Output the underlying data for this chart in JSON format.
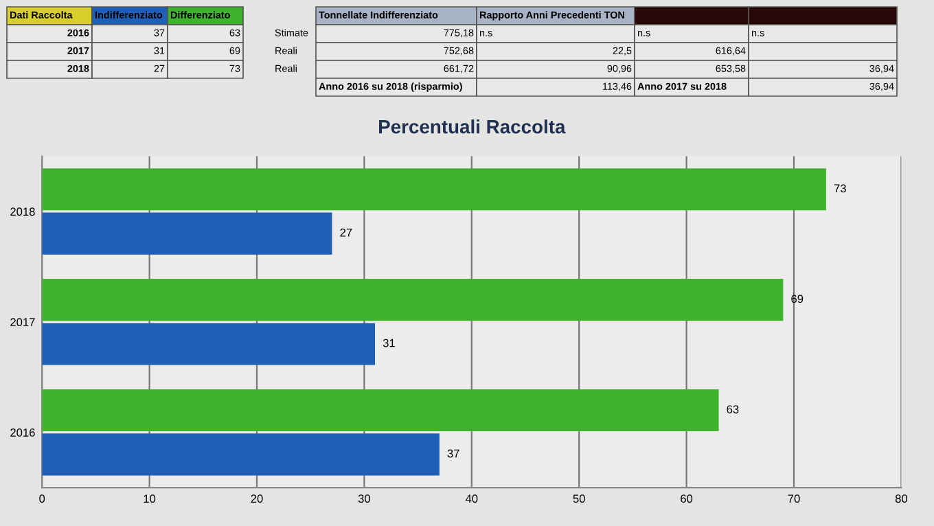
{
  "chart_data": {
    "type": "bar",
    "orientation": "horizontal",
    "title": "Percentuali Raccolta",
    "categories": [
      "2018",
      "2017",
      "2016"
    ],
    "series": [
      {
        "name": "Indifferenziato",
        "color": "#1f5fb8",
        "values": [
          27,
          31,
          37
        ]
      },
      {
        "name": "Differenziato",
        "color": "#3fb22e",
        "values": [
          73,
          69,
          63
        ]
      }
    ],
    "xlim": [
      0,
      80
    ],
    "xticks": [
      0,
      10,
      20,
      30,
      40,
      50,
      60,
      70,
      80
    ],
    "grid": "x",
    "legend": false,
    "data_labels": true,
    "annotations": [
      "Dati Raccolta",
      "37",
      "63",
      "31",
      "69",
      "27",
      "73",
      "Tonnellate Indifferenziato",
      "Rapporto Anni Precedenti TON",
      "Stimate",
      "775,18",
      "n.s",
      "n.s",
      "n.s",
      "Reali",
      "752,68",
      "22,5",
      "616,64",
      "Reali",
      "661,72",
      "90,96",
      "653,58",
      "36,94",
      "Anno 2016 su 2018 (risparmio)",
      "113,46",
      "Anno 2017 su 2018",
      "36,94"
    ]
  }
}
